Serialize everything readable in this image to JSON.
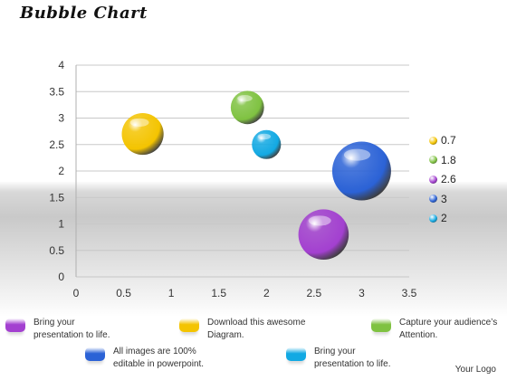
{
  "title": "Bubble Chart",
  "chart_data": {
    "type": "bubble",
    "title": "Bubble Chart",
    "xlim": [
      0,
      3.5
    ],
    "ylim": [
      0,
      4
    ],
    "x_ticks": [
      "0",
      "0.5",
      "1",
      "1.5",
      "2",
      "2.5",
      "3",
      "3.5"
    ],
    "y_ticks": [
      "0",
      "0.5",
      "1",
      "1.5",
      "2",
      "2.5",
      "3",
      "3.5",
      "4"
    ],
    "grid": "horizontal",
    "legend_position": "right",
    "series": [
      {
        "name": "0.7",
        "x": 0.7,
        "y": 2.7,
        "size": 3,
        "color": "#f4c400"
      },
      {
        "name": "1.8",
        "x": 1.8,
        "y": 3.2,
        "size": 2,
        "color": "#7fc241"
      },
      {
        "name": "2.6",
        "x": 2.6,
        "y": 0.8,
        "size": 4,
        "color": "#a340d0"
      },
      {
        "name": "3",
        "x": 3.0,
        "y": 2.0,
        "size": 5,
        "color": "#2b62d6"
      },
      {
        "name": "2",
        "x": 2.0,
        "y": 2.5,
        "size": 1.5,
        "color": "#12a9e3"
      }
    ]
  },
  "notes": [
    {
      "text1": "Bring your",
      "text2": "presentation to life.",
      "color": "#a340d0"
    },
    {
      "text1": "Download this awesome",
      "text2": "Diagram.",
      "color": "#f4c400"
    },
    {
      "text1": "Capture your audience’s",
      "text2": "Attention.",
      "color": "#7fc241"
    },
    {
      "text1": "All images are 100%",
      "text2": "editable in powerpoint.",
      "color": "#2b62d6"
    },
    {
      "text1": "Bring your",
      "text2": "presentation to life.",
      "color": "#12a9e3"
    }
  ],
  "logo": "Your Logo"
}
